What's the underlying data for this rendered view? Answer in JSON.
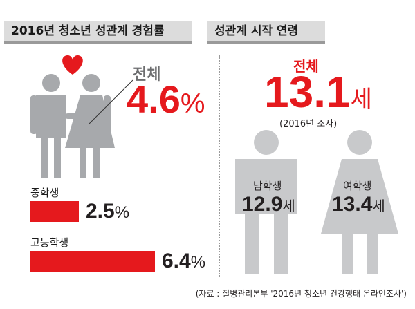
{
  "chart_data": [
    {
      "type": "bar",
      "title": "2016년 청소년 성관계 경험률",
      "headline": {
        "label": "전체",
        "value": 4.6,
        "unit": "%"
      },
      "categories": [
        "중학생",
        "고등학생"
      ],
      "values": [
        2.5,
        6.4
      ],
      "value_labels": [
        "2.5",
        "6.4"
      ],
      "unit": "%",
      "colors": {
        "bar": "#e5191d",
        "headline": "#e5191d",
        "figure": "#a7a9ac",
        "heart": "#e5191d"
      }
    },
    {
      "type": "table",
      "title": "성관계 시작 연령",
      "headline": {
        "label": "전체",
        "value": 13.1,
        "unit": "세",
        "note": "(2016년 조사)"
      },
      "categories": [
        "남학생",
        "여학생"
      ],
      "values": [
        12.9,
        13.4
      ],
      "value_labels": [
        "12.9",
        "13.4"
      ],
      "unit": "세",
      "colors": {
        "headline": "#e5191d",
        "figure": "#c8c9cb"
      }
    }
  ],
  "source": "(자료 : 질병관리본부 '2016년 청소년 건강행태 온라인조사')"
}
